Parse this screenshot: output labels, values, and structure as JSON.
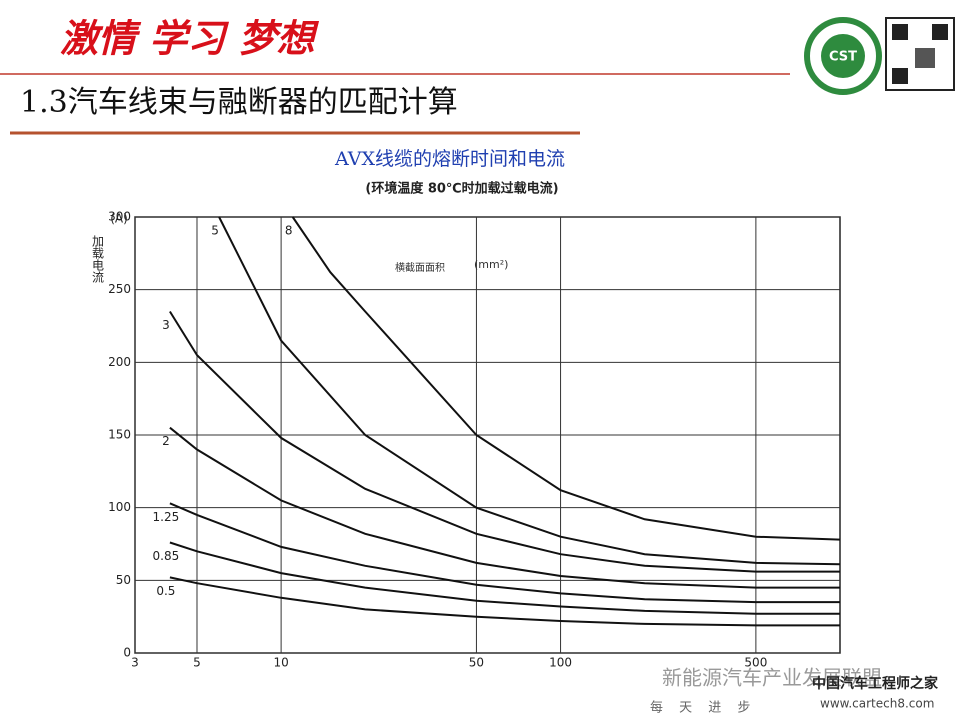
{
  "header": {
    "motto": "激情 学习 梦想",
    "title": "1.3汽车线束与融断器的匹配计算",
    "logo": "CST"
  },
  "watermark": {
    "channel": "新能源汽车产业发展联盟",
    "site_name": "中国汽车工程师之家",
    "url": "www.cartech8.com",
    "footer": "每 天 进 步"
  },
  "chart_data": {
    "type": "line",
    "title": "AVX线缆的熔断时间和电流",
    "subtitle": "(环境温度 80℃时加载过载电流)",
    "y_label": "加载电流",
    "y_unit": "(A)",
    "annotation": "横截面面积",
    "annotation_unit": "(mm²)",
    "log_x": true,
    "grid": true,
    "xlim": [
      3,
      1000
    ],
    "xticks": [
      3,
      5,
      10,
      50,
      100,
      500
    ],
    "ylim": [
      0,
      300
    ],
    "yticks": [
      0,
      50,
      100,
      150,
      200,
      250,
      300
    ],
    "series": [
      {
        "name": "0.5",
        "color": "#111111",
        "x": [
          4,
          5,
          10,
          20,
          50,
          100,
          200,
          500,
          1000
        ],
        "values": [
          52,
          48,
          38,
          30,
          25,
          22,
          20,
          19,
          19
        ]
      },
      {
        "name": "0.85",
        "color": "#111111",
        "x": [
          4,
          5,
          10,
          20,
          50,
          100,
          200,
          500,
          1000
        ],
        "values": [
          76,
          70,
          55,
          45,
          36,
          32,
          29,
          27,
          27
        ]
      },
      {
        "name": "1.25",
        "color": "#111111",
        "x": [
          4,
          5,
          10,
          20,
          50,
          100,
          200,
          500,
          1000
        ],
        "values": [
          103,
          95,
          73,
          60,
          47,
          41,
          37,
          35,
          35
        ]
      },
      {
        "name": "2",
        "color": "#111111",
        "x": [
          4,
          5,
          10,
          20,
          50,
          100,
          200,
          500,
          1000
        ],
        "values": [
          155,
          140,
          105,
          82,
          62,
          53,
          48,
          45,
          45
        ]
      },
      {
        "name": "3",
        "color": "#111111",
        "x": [
          4,
          5,
          10,
          20,
          50,
          100,
          200,
          500,
          1000
        ],
        "values": [
          235,
          205,
          148,
          113,
          82,
          68,
          60,
          56,
          56
        ]
      },
      {
        "name": "5",
        "color": "#111111",
        "x": [
          6,
          10,
          20,
          50,
          100,
          200,
          500,
          1000
        ],
        "values": [
          300,
          215,
          150,
          100,
          80,
          68,
          62,
          61
        ]
      },
      {
        "name": "8",
        "color": "#111111",
        "x": [
          11,
          15,
          20,
          50,
          100,
          200,
          500,
          1000
        ],
        "values": [
          300,
          262,
          235,
          150,
          112,
          92,
          80,
          78
        ]
      }
    ]
  }
}
